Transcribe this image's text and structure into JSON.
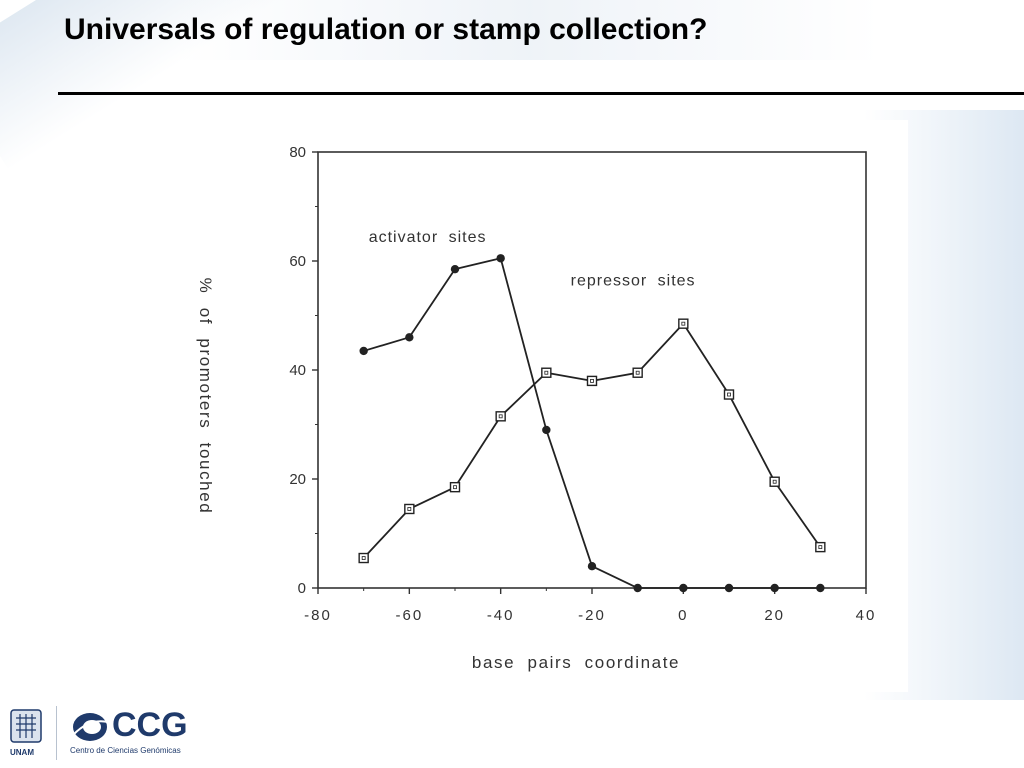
{
  "slide": {
    "title": "Universals of regulation or stamp collection?"
  },
  "footer": {
    "unam_label": "UNAM",
    "ccg_name": "CCG",
    "ccg_subtitle": "Centro de Ciencias Genómicas"
  },
  "chart_data": {
    "type": "line",
    "xlabel": "base pairs coordinate",
    "ylabel": "% of promoters touched",
    "xlim": [
      -80,
      40
    ],
    "ylim": [
      0,
      80
    ],
    "xticks": [
      -80,
      -60,
      -40,
      -20,
      0,
      20,
      40
    ],
    "yticks": [
      0,
      20,
      40,
      60,
      80
    ],
    "x_tick_labels": [
      "-80",
      "-60",
      "-40",
      "-20",
      "0",
      "20",
      "40"
    ],
    "y_tick_labels": [
      "0",
      "20",
      "40",
      "60",
      "80"
    ],
    "grid": false,
    "legend": "none",
    "series": [
      {
        "name": "activator sites",
        "marker": "filled-circle",
        "x": [
          -70,
          -60,
          -50,
          -40,
          -30,
          -20,
          -10,
          0,
          10,
          20,
          30
        ],
        "y": [
          43.5,
          46,
          58.5,
          60.5,
          29,
          4,
          0,
          0,
          0,
          0,
          0
        ]
      },
      {
        "name": "repressor sites",
        "marker": "open-square",
        "x": [
          -70,
          -60,
          -50,
          -40,
          -30,
          -20,
          -10,
          0,
          10,
          20,
          30
        ],
        "y": [
          5.5,
          14.5,
          18.5,
          31.5,
          39.5,
          38,
          39.5,
          48.5,
          35.5,
          19.5,
          7.5
        ]
      }
    ],
    "colors": {
      "line": "#222222",
      "axis": "#333333"
    }
  }
}
